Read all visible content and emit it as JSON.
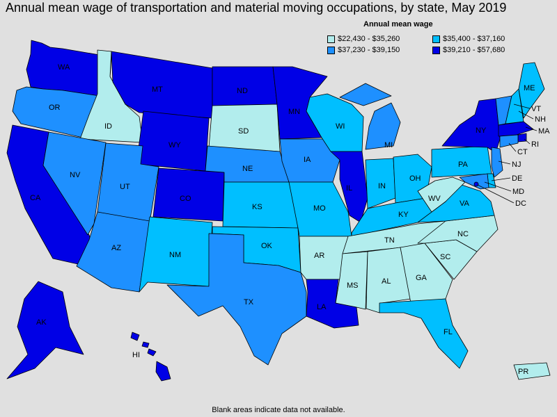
{
  "title": "Annual mean wage of transportation and material moving occupations, by state, May 2019",
  "legend": {
    "title": "Annual mean wage",
    "items": [
      {
        "label": "$22,430 - $35,260",
        "color": "#b2eded"
      },
      {
        "label": "$35,400 - $37,160",
        "color": "#00bfff"
      },
      {
        "label": "$37,230 - $39,150",
        "color": "#1e90ff"
      },
      {
        "label": "$39,210 - $57,680",
        "color": "#0000e6"
      }
    ]
  },
  "footnote": "Blank areas indicate data not available.",
  "states": {
    "WA": {
      "label": "WA",
      "bin": 3
    },
    "OR": {
      "label": "OR",
      "bin": 2
    },
    "CA": {
      "label": "CA",
      "bin": 3
    },
    "ID": {
      "label": "ID",
      "bin": 0
    },
    "NV": {
      "label": "NV",
      "bin": 2
    },
    "MT": {
      "label": "MT",
      "bin": 3
    },
    "WY": {
      "label": "WY",
      "bin": 3
    },
    "UT": {
      "label": "UT",
      "bin": 2
    },
    "AZ": {
      "label": "AZ",
      "bin": 2
    },
    "CO": {
      "label": "CO",
      "bin": 3
    },
    "NM": {
      "label": "NM",
      "bin": 1
    },
    "ND": {
      "label": "ND",
      "bin": 3
    },
    "SD": {
      "label": "SD",
      "bin": 0
    },
    "NE": {
      "label": "NE",
      "bin": 2
    },
    "KS": {
      "label": "KS",
      "bin": 1
    },
    "OK": {
      "label": "OK",
      "bin": 1
    },
    "TX": {
      "label": "TX",
      "bin": 2
    },
    "MN": {
      "label": "MN",
      "bin": 3
    },
    "IA": {
      "label": "IA",
      "bin": 2
    },
    "MO": {
      "label": "MO",
      "bin": 1
    },
    "AR": {
      "label": "AR",
      "bin": 0
    },
    "LA": {
      "label": "LA",
      "bin": 3
    },
    "WI": {
      "label": "WI",
      "bin": 1
    },
    "IL": {
      "label": "IL",
      "bin": 3
    },
    "MI": {
      "label": "MI",
      "bin": 2
    },
    "IN": {
      "label": "IN",
      "bin": 1
    },
    "OH": {
      "label": "OH",
      "bin": 1
    },
    "KY": {
      "label": "KY",
      "bin": 1
    },
    "TN": {
      "label": "TN",
      "bin": 0
    },
    "MS": {
      "label": "MS",
      "bin": 0
    },
    "AL": {
      "label": "AL",
      "bin": 0
    },
    "GA": {
      "label": "GA",
      "bin": 0
    },
    "FL": {
      "label": "FL",
      "bin": 1
    },
    "SC": {
      "label": "SC",
      "bin": 0
    },
    "NC": {
      "label": "NC",
      "bin": 0
    },
    "VA": {
      "label": "VA",
      "bin": 1
    },
    "WV": {
      "label": "WV",
      "bin": 0
    },
    "PA": {
      "label": "PA",
      "bin": 1
    },
    "NY": {
      "label": "NY",
      "bin": 3
    },
    "VT": {
      "label": "VT",
      "bin": 2
    },
    "NH": {
      "label": "NH",
      "bin": 1
    },
    "ME": {
      "label": "ME",
      "bin": 1
    },
    "MA": {
      "label": "MA",
      "bin": 3
    },
    "RI": {
      "label": "RI",
      "bin": 3
    },
    "CT": {
      "label": "CT",
      "bin": 2
    },
    "NJ": {
      "label": "NJ",
      "bin": 2
    },
    "DE": {
      "label": "DE",
      "bin": 1
    },
    "MD": {
      "label": "MD",
      "bin": 2
    },
    "DC": {
      "label": "DC",
      "bin": 3
    },
    "AK": {
      "label": "AK",
      "bin": 3
    },
    "HI": {
      "label": "HI",
      "bin": 3
    },
    "PR": {
      "label": "PR",
      "bin": 0
    }
  }
}
